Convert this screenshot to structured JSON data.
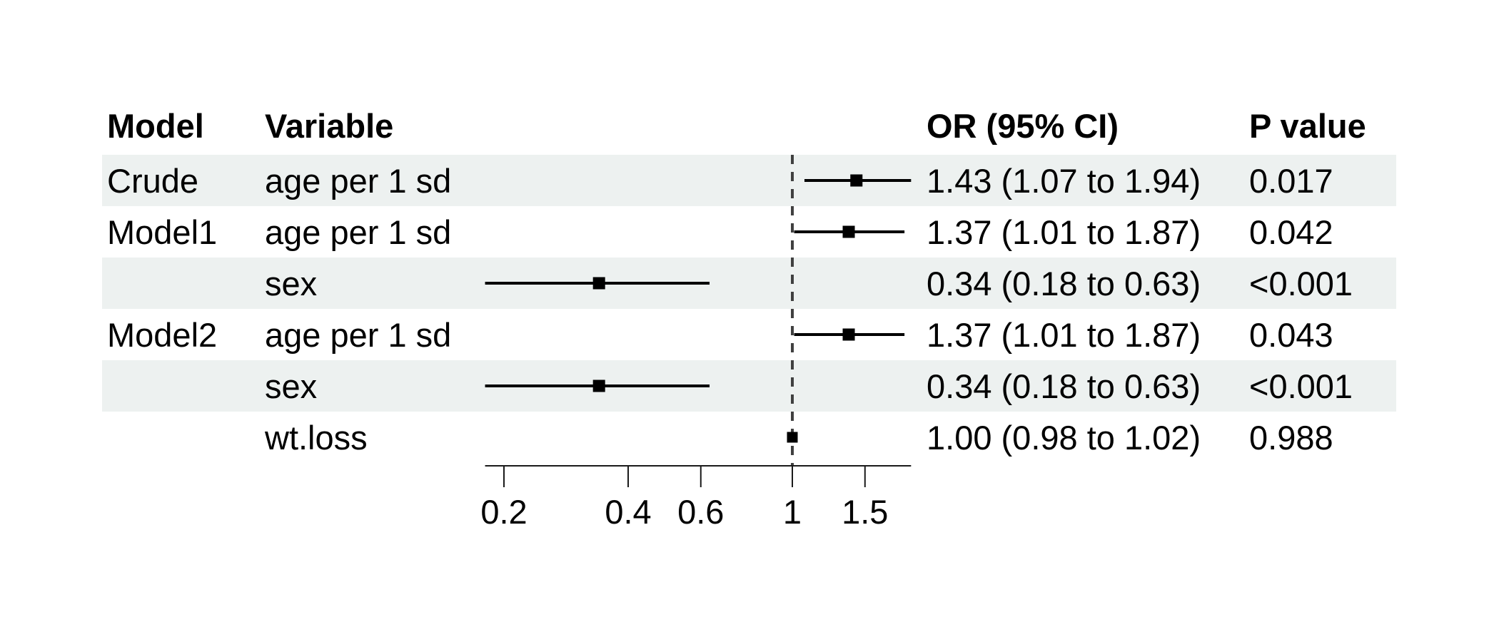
{
  "table": {
    "columns": [
      {
        "key": "model",
        "label": "Model"
      },
      {
        "key": "variable",
        "label": "Variable"
      },
      {
        "key": "or_ci",
        "label": "OR (95% CI)"
      },
      {
        "key": "pvalue",
        "label": "P value"
      }
    ],
    "rows": [
      {
        "model": "Crude",
        "variable": "age per 1 sd",
        "or_ci": "1.43 (1.07 to 1.94)",
        "pvalue": "0.017",
        "striped": true
      },
      {
        "model": "Model1",
        "variable": "age per 1 sd",
        "or_ci": "1.37 (1.01 to 1.87)",
        "pvalue": "0.042",
        "striped": false
      },
      {
        "model": "",
        "variable": "sex",
        "or_ci": "0.34 (0.18 to 0.63)",
        "pvalue": "<0.001",
        "striped": true
      },
      {
        "model": "Model2",
        "variable": "age per 1 sd",
        "or_ci": "1.37 (1.01 to 1.87)",
        "pvalue": "0.043",
        "striped": false
      },
      {
        "model": "",
        "variable": "sex",
        "or_ci": "0.34 (0.18 to 0.63)",
        "pvalue": "<0.001",
        "striped": true
      },
      {
        "model": "",
        "variable": "wt.loss",
        "or_ci": "1.00 (0.98 to 1.02)",
        "pvalue": "0.988",
        "striped": false
      }
    ]
  },
  "chart_data": {
    "type": "forest",
    "x_scale": "log10",
    "reference_line": 1,
    "x_range": [
      0.18,
      1.94
    ],
    "x_ticks": [
      {
        "value": 0.2,
        "label": "0.2"
      },
      {
        "value": 0.4,
        "label": "0.4"
      },
      {
        "value": 0.6,
        "label": "0.6"
      },
      {
        "value": 1,
        "label": "1"
      },
      {
        "value": 1.5,
        "label": "1.5"
      }
    ],
    "series": [
      {
        "row": "Crude age per 1 sd",
        "estimate": 1.43,
        "ci_low": 1.07,
        "ci_high": 1.94
      },
      {
        "row": "Model1 age per 1 sd",
        "estimate": 1.37,
        "ci_low": 1.01,
        "ci_high": 1.87
      },
      {
        "row": "Model1 sex",
        "estimate": 0.34,
        "ci_low": 0.18,
        "ci_high": 0.63
      },
      {
        "row": "Model2 age per 1 sd",
        "estimate": 1.37,
        "ci_low": 1.01,
        "ci_high": 1.87
      },
      {
        "row": "Model2 sex",
        "estimate": 0.34,
        "ci_low": 0.18,
        "ci_high": 0.63
      },
      {
        "row": "Model2 wt.loss",
        "estimate": 1.0,
        "ci_low": 0.98,
        "ci_high": 1.02
      }
    ]
  },
  "colors": {
    "stripe": "#edf1f0",
    "text": "#000000",
    "ci_line": "#000000",
    "marker": "#000000",
    "axis": "#1a1a1a",
    "reference_line": "#404040"
  }
}
